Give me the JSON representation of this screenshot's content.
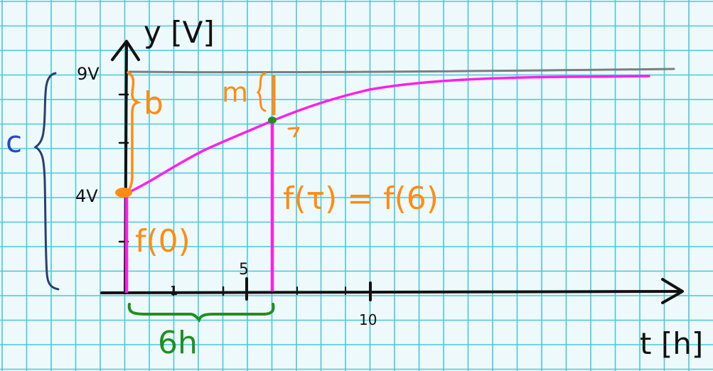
{
  "labels": {
    "y_axis": "y [V]",
    "x_axis": "t [h]",
    "y_9v": "9V",
    "y_4v": "4V",
    "b": "b",
    "c": "c",
    "m": "m",
    "f0": "f(0)",
    "ftau": "f(τ) = f(6)",
    "six_h": "6h",
    "tick_5": "5",
    "tick_10": "10",
    "tick_1": "1"
  },
  "colors": {
    "grid": "#47c9d9",
    "background": "#eef9fb",
    "axis": "#111111",
    "curve": "#ff1fe8",
    "orange": "#ff8c12",
    "green": "#1f8f1f",
    "blue": "#2b46c9",
    "navy": "#28406f",
    "gray": "#7d7d7d"
  }
}
